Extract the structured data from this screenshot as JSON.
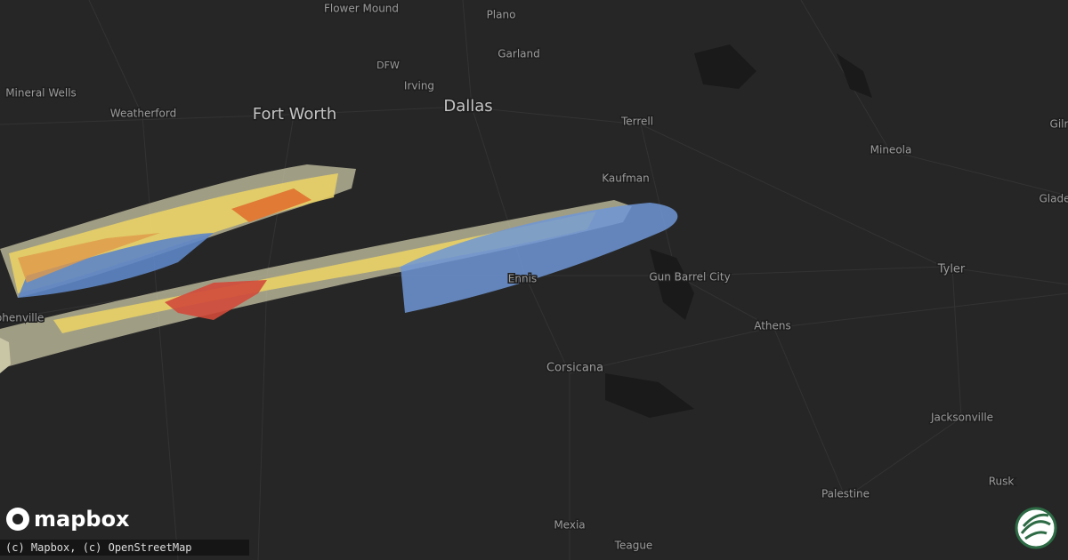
{
  "map": {
    "places": [
      "Flower Mound",
      "Plano",
      "Garland",
      "DFW",
      "Irving",
      "Dallas",
      "Fort Worth",
      "Mineral Wells",
      "Weatherford",
      "Terrell",
      "Kaufman",
      "Mineola",
      "Gilr",
      "Glade",
      "Tyler",
      "Gun Barrel City",
      "Athens",
      "Ennis",
      "Corsicana",
      "Jacksonville",
      "Rusk",
      "Palestine",
      "Mexia",
      "Teague",
      "phenville"
    ],
    "logo": "mapbox",
    "attribution": "(c) Mapbox, (c) OpenStreetMap"
  }
}
